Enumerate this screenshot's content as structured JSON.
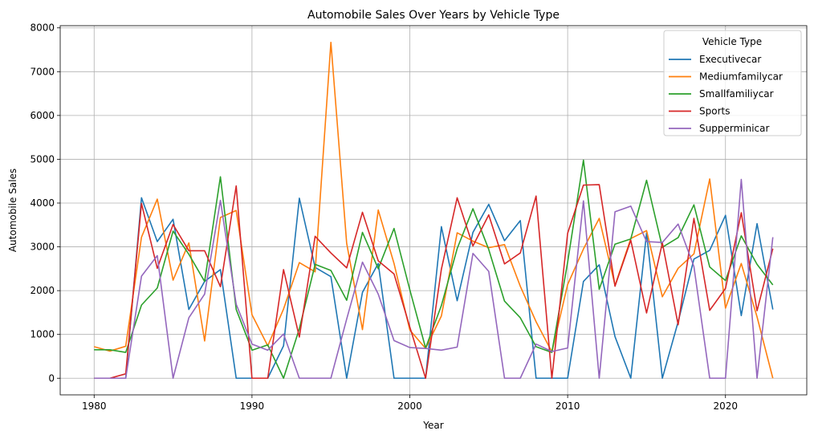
{
  "chart_data": {
    "type": "line",
    "title": "Automobile Sales Over Years by Vehicle Type",
    "xlabel": "Year",
    "ylabel": "Automobile Sales",
    "xlim": [
      1977.85,
      2025.15
    ],
    "ylim": [
      -380,
      8050
    ],
    "xticks": [
      1980,
      1990,
      2000,
      2010,
      2020
    ],
    "yticks": [
      0,
      1000,
      2000,
      3000,
      4000,
      5000,
      6000,
      7000,
      8000
    ],
    "grid": true,
    "legend": {
      "title": "Vehicle Type",
      "position": "top-right"
    },
    "x": [
      1980,
      1981,
      1982,
      1983,
      1984,
      1985,
      1986,
      1987,
      1988,
      1989,
      1990,
      1991,
      1992,
      1993,
      1994,
      1995,
      1996,
      1997,
      1998,
      1999,
      2000,
      2001,
      2002,
      2003,
      2004,
      2005,
      2006,
      2007,
      2008,
      2009,
      2010,
      2011,
      2012,
      2013,
      2014,
      2015,
      2016,
      2017,
      2018,
      2019,
      2020,
      2021,
      2022,
      2023
    ],
    "series": [
      {
        "name": "Executivecar",
        "color": "#1f77b4",
        "values": [
          0,
          0,
          0,
          4120,
          3120,
          3630,
          1570,
          2210,
          2480,
          0,
          0,
          0,
          740,
          4110,
          2530,
          2320,
          0,
          1960,
          2620,
          0,
          0,
          0,
          3460,
          1770,
          3330,
          3970,
          3140,
          3600,
          0,
          0,
          0,
          2210,
          2590,
          950,
          0,
          3320,
          0,
          1290,
          2720,
          2920,
          3720,
          1430,
          3530,
          1570
        ]
      },
      {
        "name": "Mediumfamilycar",
        "color": "#ff7f0e",
        "values": [
          720,
          620,
          730,
          3220,
          4090,
          2240,
          3090,
          850,
          3670,
          3830,
          1450,
          740,
          1580,
          2640,
          2430,
          7670,
          3080,
          1110,
          3840,
          2620,
          1100,
          680,
          1420,
          3320,
          3130,
          2980,
          3050,
          2100,
          1290,
          600,
          2140,
          2950,
          3650,
          2120,
          3190,
          3370,
          1860,
          2510,
          2840,
          4550,
          1600,
          2620,
          1400,
          0
        ]
      },
      {
        "name": "Smallfamiliycar",
        "color": "#2ca02c",
        "values": [
          650,
          650,
          590,
          1670,
          2060,
          3360,
          2830,
          2210,
          4600,
          1570,
          640,
          760,
          0,
          1130,
          2600,
          2460,
          1780,
          3330,
          2500,
          3420,
          2020,
          690,
          1660,
          2960,
          3870,
          2940,
          1760,
          1380,
          720,
          590,
          2650,
          4980,
          2030,
          3060,
          3180,
          4520,
          2990,
          3210,
          3960,
          2540,
          2230,
          3250,
          2600,
          2130
        ]
      },
      {
        "name": "Sports",
        "color": "#d62728",
        "values": [
          0,
          0,
          100,
          3990,
          2510,
          3510,
          2910,
          2910,
          2090,
          4390,
          0,
          0,
          2480,
          940,
          3240,
          2860,
          2520,
          3790,
          2680,
          2380,
          1170,
          0,
          2490,
          4120,
          3020,
          3730,
          2610,
          2860,
          4160,
          0,
          3310,
          4410,
          4420,
          2100,
          3150,
          1490,
          3090,
          1220,
          3650,
          1550,
          2050,
          3780,
          1540,
          2960
        ]
      },
      {
        "name": "Supperminicar",
        "color": "#9467bd",
        "values": [
          0,
          0,
          0,
          2330,
          2800,
          0,
          1380,
          1920,
          4060,
          1690,
          780,
          640,
          1010,
          0,
          0,
          0,
          1350,
          2650,
          1920,
          860,
          700,
          680,
          640,
          710,
          2850,
          2440,
          0,
          0,
          780,
          610,
          690,
          4050,
          0,
          3800,
          3930,
          3120,
          3100,
          3520,
          2550,
          0,
          0,
          4540,
          0,
          3220
        ]
      }
    ]
  }
}
